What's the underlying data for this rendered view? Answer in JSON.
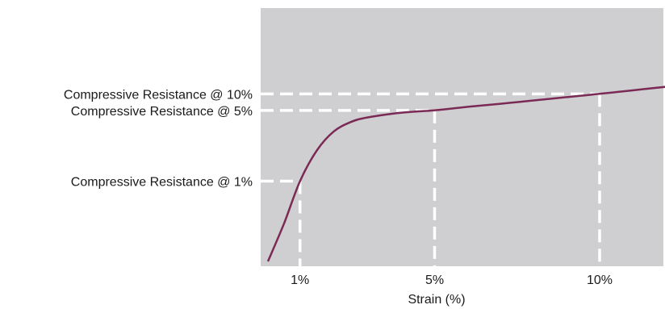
{
  "chart_data": {
    "type": "line",
    "title": "",
    "xlabel": "Strain (%)",
    "ylabel": "",
    "xlim": [
      0,
      12.5
    ],
    "ylim": [
      0,
      100
    ],
    "grid": false,
    "legend": "none",
    "colors": {
      "plot_background": "#cfcfd1",
      "curve": "#7b2a55",
      "guides": "#ffffff"
    },
    "x_ticks": [
      {
        "value": 1,
        "label": "1%"
      },
      {
        "value": 5,
        "label": "5%"
      },
      {
        "value": 10,
        "label": "10%"
      }
    ],
    "y_markers": [
      {
        "strain": 10,
        "value": 71,
        "label": "Compressive Resistance @ 10%"
      },
      {
        "strain": 5,
        "value": 64,
        "label": "Compressive Resistance @ 5%"
      },
      {
        "strain": 1,
        "value": 34,
        "label": "Compressive Resistance @ 1%"
      }
    ],
    "series": [
      {
        "x": [
          0,
          0.5,
          1.0,
          1.5,
          2.0,
          2.5,
          3.0,
          4.0,
          5.0,
          6.0,
          7.0,
          8.0,
          9.0,
          10.0,
          11.0,
          12.0,
          12.5
        ],
        "values": [
          0,
          16,
          34,
          47,
          55,
          59,
          61,
          63,
          64,
          65.5,
          66.8,
          68.2,
          69.6,
          71,
          72.5,
          74,
          74.8
        ]
      }
    ]
  }
}
